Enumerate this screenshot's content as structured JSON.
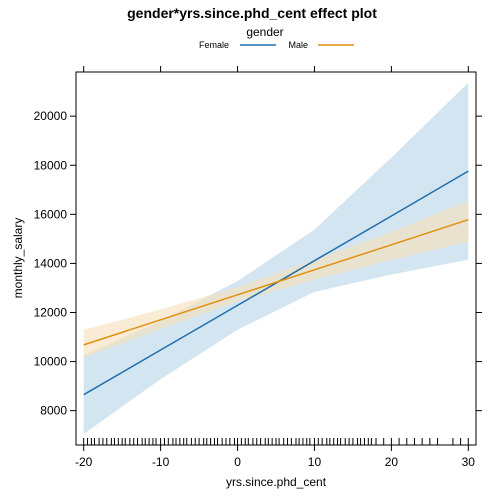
{
  "chart_data": {
    "type": "line",
    "title": "gender*yrs.since.phd_cent effect plot",
    "xlabel": "yrs.since.phd_cent",
    "ylabel": "monthly_salary",
    "xlim": [
      -21,
      31
    ],
    "ylim": [
      6600,
      21800
    ],
    "xticks": [
      -20,
      -10,
      0,
      10,
      20,
      30
    ],
    "yticks": [
      8000,
      10000,
      12000,
      14000,
      16000,
      18000,
      20000
    ],
    "grid": false,
    "legend": {
      "title": "gender",
      "placement": "top-center"
    },
    "series": [
      {
        "name": "Female",
        "color": "#1f6fae",
        "band_color": "#c6dcee",
        "x": [
          -20,
          -10,
          0,
          10,
          20,
          30
        ],
        "y": [
          8650,
          10470,
          12290,
          14110,
          15930,
          17760
        ],
        "lower": [
          7050,
          9280,
          11300,
          12840,
          13550,
          14150
        ],
        "upper": [
          10250,
          11660,
          13280,
          15380,
          18310,
          21370
        ]
      },
      {
        "name": "Male",
        "color": "#e0900e",
        "band_color": "#f7dfb7",
        "x": [
          -20,
          -10,
          0,
          10,
          20,
          30
        ],
        "y": [
          10680,
          11700,
          12720,
          13740,
          14760,
          15780
        ],
        "lower": [
          10150,
          11320,
          12450,
          13330,
          14140,
          14880
        ],
        "upper": [
          11300,
          12120,
          13040,
          14150,
          15280,
          16560
        ]
      }
    ],
    "rug_x": [
      -20,
      -19.5,
      -19,
      -18.6,
      -18,
      -17.5,
      -17,
      -16.4,
      -16,
      -15.5,
      -15,
      -14.6,
      -14,
      -13.5,
      -13,
      -12.4,
      -12,
      -11.5,
      -11,
      -10.6,
      -10,
      -9.5,
      -9,
      -8.4,
      -8,
      -7.5,
      -7,
      -6.6,
      -6,
      -5.5,
      -5,
      -4.4,
      -4,
      -3.5,
      -3,
      -2.6,
      -2,
      -1.5,
      -1,
      -0.4,
      0,
      0.5,
      1,
      1.4,
      2,
      2.5,
      3,
      3.6,
      4,
      4.5,
      5,
      5.4,
      6,
      6.5,
      7,
      7.6,
      8,
      8.5,
      9,
      9.4,
      10,
      10.5,
      11,
      11.6,
      12,
      12.5,
      13,
      13.4,
      14,
      14.5,
      15,
      15.6,
      16,
      16.5,
      17,
      17.4,
      18,
      19,
      20,
      21,
      22,
      23,
      24,
      25,
      26,
      28,
      29,
      30
    ]
  }
}
